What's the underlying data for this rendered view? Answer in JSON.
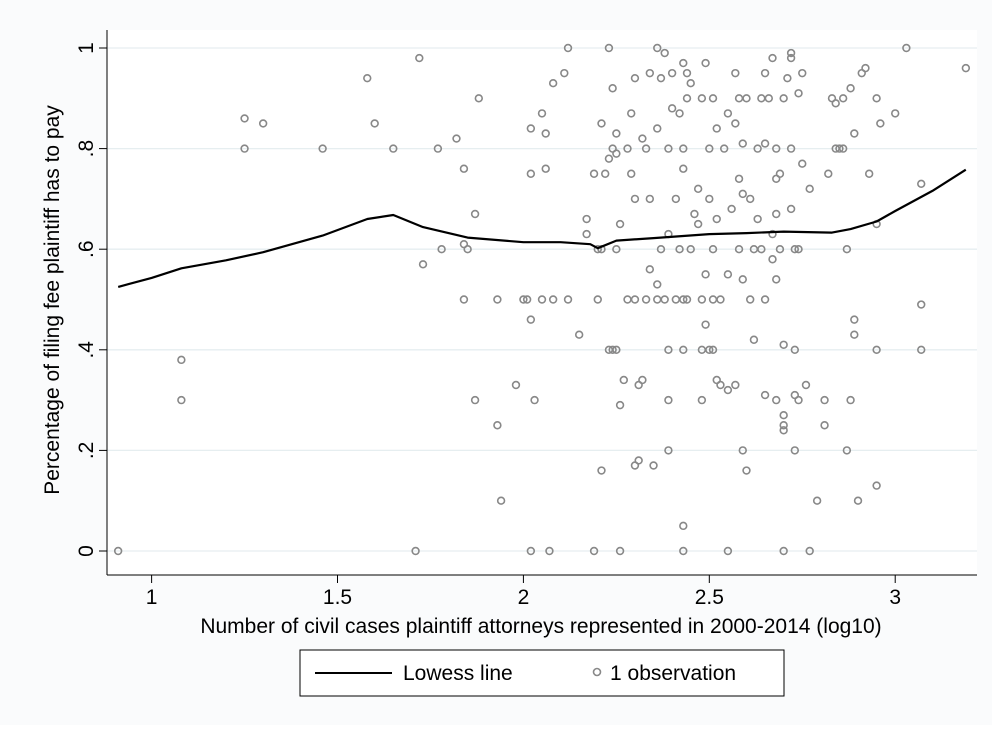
{
  "chart_data": {
    "type": "scatter",
    "xlabel": "Number of civil cases plaintiff attorneys represented in 2000-2014 (log10)",
    "ylabel": "Percentage of filing fee plaintiff has to pay",
    "xlim": [
      0.88,
      3.22
    ],
    "ylim": [
      0,
      1
    ],
    "x_ticks": [
      1,
      1.5,
      2,
      2.5,
      3
    ],
    "x_tick_labels": [
      "1",
      "1.5",
      "2",
      "2.5",
      "3"
    ],
    "y_ticks": [
      0,
      0.2,
      0.4,
      0.6,
      0.8,
      1
    ],
    "y_tick_labels": [
      "0",
      ".2",
      ".4",
      ".6",
      ".8",
      "1"
    ],
    "grid": "horizontal",
    "legend_position": "bottom",
    "legend": [
      "Lowess line",
      "1 observation"
    ],
    "series": [
      {
        "name": "Lowess line",
        "kind": "line",
        "color": "#000000",
        "points": [
          [
            0.91,
            0.525
          ],
          [
            1.0,
            0.543
          ],
          [
            1.08,
            0.562
          ],
          [
            1.2,
            0.578
          ],
          [
            1.3,
            0.594
          ],
          [
            1.46,
            0.627
          ],
          [
            1.58,
            0.66
          ],
          [
            1.65,
            0.668
          ],
          [
            1.73,
            0.644
          ],
          [
            1.85,
            0.623
          ],
          [
            2.0,
            0.614
          ],
          [
            2.1,
            0.614
          ],
          [
            2.18,
            0.61
          ],
          [
            2.2,
            0.602
          ],
          [
            2.25,
            0.617
          ],
          [
            2.35,
            0.622
          ],
          [
            2.5,
            0.63
          ],
          [
            2.6,
            0.632
          ],
          [
            2.7,
            0.635
          ],
          [
            2.83,
            0.633
          ],
          [
            2.88,
            0.64
          ],
          [
            2.95,
            0.655
          ],
          [
            3.0,
            0.676
          ],
          [
            3.1,
            0.716
          ],
          [
            3.19,
            0.758
          ]
        ]
      },
      {
        "name": "1 observation",
        "kind": "scatter",
        "color": "#888888",
        "points": [
          [
            0.91,
            0
          ],
          [
            1.08,
            0.38
          ],
          [
            1.08,
            0.3
          ],
          [
            1.25,
            0.86
          ],
          [
            1.25,
            0.8
          ],
          [
            1.3,
            0.85
          ],
          [
            1.46,
            0.8
          ],
          [
            1.58,
            0.94
          ],
          [
            1.6,
            0.85
          ],
          [
            1.65,
            0.8
          ],
          [
            1.72,
            0.98
          ],
          [
            1.73,
            0.57
          ],
          [
            1.71,
            0
          ],
          [
            1.77,
            0.8
          ],
          [
            1.78,
            0.6
          ],
          [
            1.82,
            0.82
          ],
          [
            1.84,
            0.76
          ],
          [
            1.84,
            0.61
          ],
          [
            1.84,
            0.5
          ],
          [
            1.85,
            0.6
          ],
          [
            1.87,
            0.67
          ],
          [
            1.88,
            0.9
          ],
          [
            1.87,
            0.3
          ],
          [
            1.93,
            0.5
          ],
          [
            1.93,
            0.25
          ],
          [
            1.94,
            0.1
          ],
          [
            1.98,
            0.33
          ],
          [
            2.0,
            0.5
          ],
          [
            2.01,
            0.5
          ],
          [
            2.02,
            0.75
          ],
          [
            2.02,
            0.84
          ],
          [
            2.02,
            0.46
          ],
          [
            2.03,
            0.3
          ],
          [
            2.02,
            0
          ],
          [
            2.05,
            0.87
          ],
          [
            2.06,
            0.83
          ],
          [
            2.06,
            0.76
          ],
          [
            2.05,
            0.5
          ],
          [
            2.08,
            0.93
          ],
          [
            2.08,
            0.5
          ],
          [
            2.07,
            0
          ],
          [
            2.11,
            0.95
          ],
          [
            2.12,
            1.0
          ],
          [
            2.12,
            0.5
          ],
          [
            2.15,
            0.43
          ],
          [
            2.17,
            0.63
          ],
          [
            2.17,
            0.66
          ],
          [
            2.19,
            0.75
          ],
          [
            2.19,
            0
          ],
          [
            2.2,
            0.6
          ],
          [
            2.21,
            0.85
          ],
          [
            2.21,
            0.6
          ],
          [
            2.2,
            0.5
          ],
          [
            2.21,
            0.16
          ],
          [
            2.22,
            0.75
          ],
          [
            2.23,
            0.78
          ],
          [
            2.23,
            1.0
          ],
          [
            2.23,
            0.4
          ],
          [
            2.24,
            0.4
          ],
          [
            2.24,
            0.8
          ],
          [
            2.25,
            0.83
          ],
          [
            2.25,
            0.79
          ],
          [
            2.24,
            0.92
          ],
          [
            2.25,
            0.6
          ],
          [
            2.25,
            0.4
          ],
          [
            2.26,
            0.65
          ],
          [
            2.26,
            0.29
          ],
          [
            2.26,
            0
          ],
          [
            2.28,
            0.8
          ],
          [
            2.27,
            0.34
          ],
          [
            2.28,
            0.5
          ],
          [
            2.29,
            0.75
          ],
          [
            2.29,
            0.87
          ],
          [
            2.3,
            0.94
          ],
          [
            2.3,
            0.7
          ],
          [
            2.3,
            0.5
          ],
          [
            2.3,
            0.17
          ],
          [
            2.31,
            0.33
          ],
          [
            2.31,
            0.18
          ],
          [
            2.32,
            0.82
          ],
          [
            2.32,
            0.34
          ],
          [
            2.33,
            0.8
          ],
          [
            2.33,
            0.5
          ],
          [
            2.34,
            0.95
          ],
          [
            2.34,
            0.7
          ],
          [
            2.34,
            0.56
          ],
          [
            2.35,
            0.17
          ],
          [
            2.36,
            0.53
          ],
          [
            2.36,
            0.5
          ],
          [
            2.36,
            0.84
          ],
          [
            2.36,
            1.0
          ],
          [
            2.37,
            0.94
          ],
          [
            2.37,
            0.6
          ],
          [
            2.38,
            0.99
          ],
          [
            2.38,
            0.5
          ],
          [
            2.39,
            0.8
          ],
          [
            2.39,
            0.63
          ],
          [
            2.39,
            0.4
          ],
          [
            2.39,
            0.2
          ],
          [
            2.39,
            0.3
          ],
          [
            2.4,
            0.95
          ],
          [
            2.4,
            0.88
          ],
          [
            2.41,
            0.7
          ],
          [
            2.41,
            0.5
          ],
          [
            2.42,
            0.87
          ],
          [
            2.42,
            0.6
          ],
          [
            2.43,
            0.97
          ],
          [
            2.43,
            0.8
          ],
          [
            2.43,
            0.76
          ],
          [
            2.43,
            0.5
          ],
          [
            2.43,
            0.4
          ],
          [
            2.43,
            0.05
          ],
          [
            2.43,
            0
          ],
          [
            2.44,
            0.95
          ],
          [
            2.44,
            0.9
          ],
          [
            2.44,
            0.5
          ],
          [
            2.45,
            0.93
          ],
          [
            2.45,
            0.6
          ],
          [
            2.46,
            0.67
          ],
          [
            2.47,
            0.72
          ],
          [
            2.47,
            0.65
          ],
          [
            2.48,
            0.9
          ],
          [
            2.48,
            0.5
          ],
          [
            2.48,
            0.4
          ],
          [
            2.48,
            0.3
          ],
          [
            2.49,
            0.97
          ],
          [
            2.49,
            0.55
          ],
          [
            2.49,
            0.45
          ],
          [
            2.5,
            0.8
          ],
          [
            2.5,
            0.7
          ],
          [
            2.5,
            0.4
          ],
          [
            2.51,
            0.9
          ],
          [
            2.51,
            0.6
          ],
          [
            2.51,
            0.5
          ],
          [
            2.51,
            0.4
          ],
          [
            2.52,
            0.84
          ],
          [
            2.52,
            0.66
          ],
          [
            2.52,
            0.34
          ],
          [
            2.53,
            0.5
          ],
          [
            2.53,
            0.33
          ],
          [
            2.54,
            0.8
          ],
          [
            2.55,
            0.87
          ],
          [
            2.55,
            0.55
          ],
          [
            2.55,
            0.32
          ],
          [
            2.55,
            0
          ],
          [
            2.56,
            0.68
          ],
          [
            2.57,
            0.95
          ],
          [
            2.57,
            0.85
          ],
          [
            2.57,
            0.33
          ],
          [
            2.58,
            0.9
          ],
          [
            2.58,
            0.74
          ],
          [
            2.58,
            0.6
          ],
          [
            2.59,
            0.81
          ],
          [
            2.59,
            0.71
          ],
          [
            2.59,
            0.54
          ],
          [
            2.59,
            0.2
          ],
          [
            2.6,
            0.16
          ],
          [
            2.6,
            0.9
          ],
          [
            2.61,
            0.7
          ],
          [
            2.61,
            0.5
          ],
          [
            2.62,
            0.42
          ],
          [
            2.62,
            0.6
          ],
          [
            2.63,
            0.8
          ],
          [
            2.63,
            0.66
          ],
          [
            2.64,
            0.9
          ],
          [
            2.64,
            0.6
          ],
          [
            2.65,
            0.95
          ],
          [
            2.65,
            0.81
          ],
          [
            2.65,
            0.5
          ],
          [
            2.65,
            0.31
          ],
          [
            2.66,
            0.9
          ],
          [
            2.67,
            0.98
          ],
          [
            2.67,
            0.63
          ],
          [
            2.67,
            0.58
          ],
          [
            2.68,
            0.8
          ],
          [
            2.68,
            0.74
          ],
          [
            2.68,
            0.67
          ],
          [
            2.68,
            0.54
          ],
          [
            2.68,
            0.3
          ],
          [
            2.69,
            0.75
          ],
          [
            2.69,
            0.6
          ],
          [
            2.7,
            0.9
          ],
          [
            2.7,
            0.41
          ],
          [
            2.7,
            0.27
          ],
          [
            2.7,
            0.25
          ],
          [
            2.7,
            0.24
          ],
          [
            2.7,
            0
          ],
          [
            2.71,
            0.94
          ],
          [
            2.72,
            0.99
          ],
          [
            2.72,
            0.98
          ],
          [
            2.72,
            0.68
          ],
          [
            2.72,
            0.8
          ],
          [
            2.73,
            0.6
          ],
          [
            2.73,
            0.4
          ],
          [
            2.73,
            0.31
          ],
          [
            2.73,
            0.2
          ],
          [
            2.74,
            0.91
          ],
          [
            2.74,
            0.6
          ],
          [
            2.74,
            0.3
          ],
          [
            2.75,
            0.95
          ],
          [
            2.75,
            0.77
          ],
          [
            2.76,
            0.33
          ],
          [
            2.77,
            0.72
          ],
          [
            2.77,
            0
          ],
          [
            2.79,
            0.1
          ],
          [
            2.81,
            0.3
          ],
          [
            2.81,
            0.25
          ],
          [
            2.82,
            0.75
          ],
          [
            2.83,
            0.9
          ],
          [
            2.84,
            0.8
          ],
          [
            2.84,
            0.89
          ],
          [
            2.85,
            0.8
          ],
          [
            2.86,
            0.9
          ],
          [
            2.86,
            0.8
          ],
          [
            2.87,
            0.6
          ],
          [
            2.87,
            0.2
          ],
          [
            2.88,
            0.92
          ],
          [
            2.88,
            0.3
          ],
          [
            2.89,
            0.46
          ],
          [
            2.89,
            0.43
          ],
          [
            2.89,
            0.83
          ],
          [
            2.9,
            0.1
          ],
          [
            2.91,
            0.95
          ],
          [
            2.92,
            0.96
          ],
          [
            2.93,
            0.75
          ],
          [
            2.95,
            0.9
          ],
          [
            2.95,
            0.65
          ],
          [
            2.95,
            0.4
          ],
          [
            2.95,
            0.13
          ],
          [
            2.96,
            0.85
          ],
          [
            3.0,
            0.87
          ],
          [
            3.03,
            1.0
          ],
          [
            3.07,
            0.73
          ],
          [
            3.07,
            0.49
          ],
          [
            3.07,
            0.4
          ],
          [
            3.19,
            0.96
          ]
        ]
      }
    ]
  }
}
